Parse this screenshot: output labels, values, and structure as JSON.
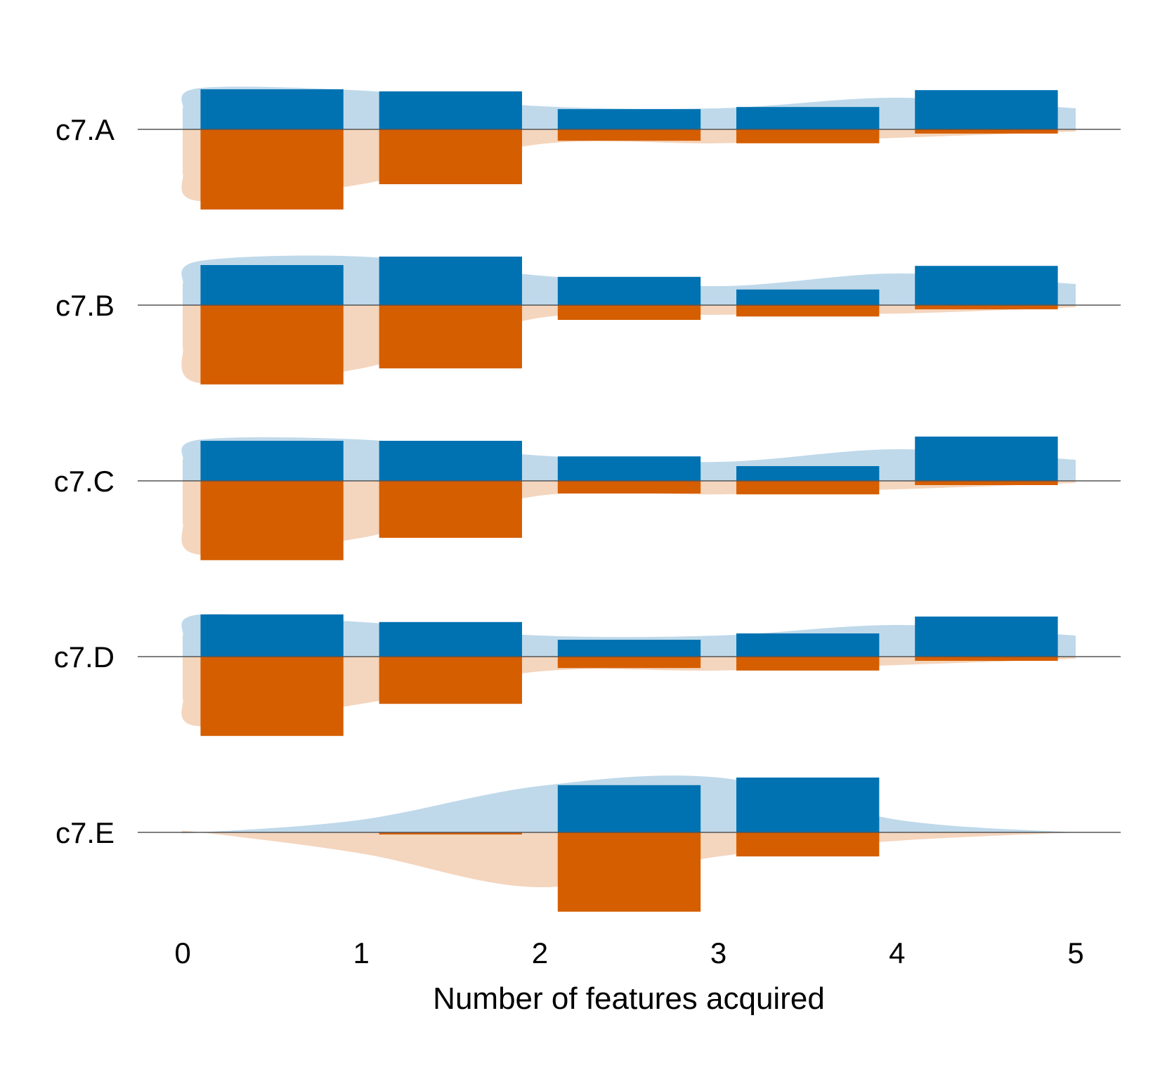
{
  "chart_data": {
    "type": "bar",
    "xlabel": "Number of features acquired",
    "ylabel": "",
    "x_ticks": [
      0,
      1,
      2,
      3,
      4,
      5
    ],
    "xlim": [
      0,
      5
    ],
    "bins": [
      [
        0,
        1
      ],
      [
        1,
        2
      ],
      [
        2,
        3
      ],
      [
        3,
        4
      ],
      [
        4,
        5
      ]
    ],
    "colors": {
      "up_bar": "#0072b2",
      "down_bar": "#d55e00",
      "up_density": "#bfd9ea",
      "down_density": "#f4d5bd",
      "baseline": "#555555"
    },
    "rows": [
      {
        "label": "c7.A",
        "up": [
          0.95,
          0.9,
          0.48,
          0.53,
          0.93
        ],
        "down": [
          1.9,
          1.3,
          0.27,
          0.33,
          0.1
        ],
        "up_density": [
          0.5,
          0.98,
          0.92,
          0.55,
          0.5,
          0.75,
          0.5
        ],
        "down_density": [
          1.05,
          1.7,
          1.3,
          0.35,
          0.33,
          0.2,
          0.05
        ]
      },
      {
        "label": "c7.B",
        "up": [
          0.95,
          1.15,
          0.67,
          0.37,
          0.93
        ],
        "down": [
          1.88,
          1.5,
          0.35,
          0.27,
          0.1
        ],
        "up_density": [
          0.5,
          1.05,
          1.15,
          0.7,
          0.45,
          0.75,
          0.5
        ],
        "down_density": [
          1.0,
          1.85,
          1.5,
          0.3,
          0.23,
          0.2,
          0.05
        ]
      },
      {
        "label": "c7.C",
        "up": [
          0.95,
          0.95,
          0.58,
          0.35,
          1.05
        ],
        "down": [
          1.88,
          1.35,
          0.3,
          0.32,
          0.1
        ],
        "up_density": [
          0.5,
          0.98,
          0.98,
          0.6,
          0.45,
          0.75,
          0.5
        ],
        "down_density": [
          1.0,
          1.75,
          1.35,
          0.35,
          0.32,
          0.2,
          0.05
        ]
      },
      {
        "label": "c7.D",
        "up": [
          1.0,
          0.82,
          0.4,
          0.55,
          0.95
        ],
        "down": [
          1.88,
          1.12,
          0.27,
          0.33,
          0.1
        ],
        "up_density": [
          0.5,
          1.0,
          0.82,
          0.5,
          0.5,
          0.75,
          0.5
        ],
        "down_density": [
          1.0,
          1.65,
          1.12,
          0.35,
          0.33,
          0.2,
          0.05
        ]
      },
      {
        "label": "c7.E",
        "up": [
          0.0,
          0.0,
          1.12,
          1.3,
          0.0
        ],
        "down": [
          0.0,
          0.05,
          1.88,
          0.57,
          0.0
        ],
        "up_density": [
          0.0,
          0.0,
          0.3,
          1.1,
          1.3,
          0.3,
          0.0
        ],
        "down_density": [
          0.0,
          0.0,
          0.5,
          1.3,
          0.57,
          0.2,
          0.0
        ]
      }
    ]
  }
}
